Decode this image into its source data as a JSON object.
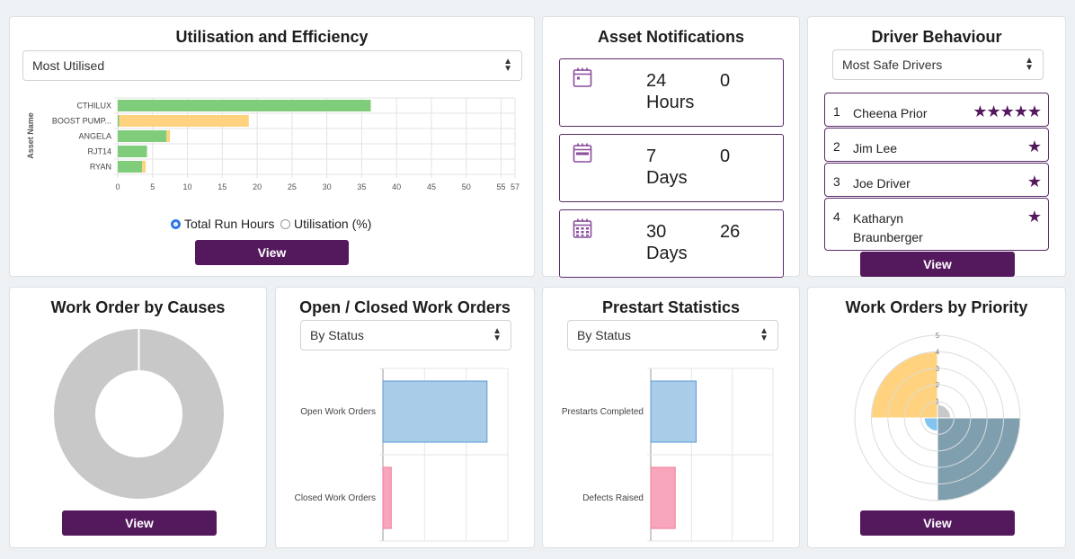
{
  "utilisation": {
    "title": "Utilisation and Efficiency",
    "select_value": "Most Utilised",
    "view_label": "View",
    "radio_run_hours": "Total Run Hours",
    "radio_utilisation": "Utilisation (%)"
  },
  "notifications": {
    "title": "Asset Notifications",
    "items": [
      {
        "num": "24",
        "unit": "Hours",
        "count": "0"
      },
      {
        "num": "7",
        "unit": "Days",
        "count": "0"
      },
      {
        "num": "30",
        "unit": "Days",
        "count": "26"
      }
    ]
  },
  "drivers": {
    "title": "Driver Behaviour",
    "select_value": "Most Safe Drivers",
    "view_label": "View",
    "items": [
      {
        "rank": "1",
        "name": "Cheena Prior",
        "stars": "★★★★★"
      },
      {
        "rank": "2",
        "name": "Jim Lee",
        "stars": "★"
      },
      {
        "rank": "3",
        "name": "Joe Driver",
        "stars": "★"
      },
      {
        "rank": "4",
        "name": "Katharyn Braunberger",
        "stars": "★"
      }
    ]
  },
  "causes": {
    "title": "Work Order by Causes",
    "view_label": "View"
  },
  "open_closed": {
    "title": "Open / Closed Work Orders",
    "select_value": "By Status"
  },
  "prestart": {
    "title": "Prestart Statistics",
    "select_value": "By Status"
  },
  "priority": {
    "title": "Work Orders by Priority",
    "view_label": "View"
  },
  "colors": {
    "brand": "#54185c",
    "green": "#7fcd7a",
    "orange": "#ffd27f",
    "blue": "#a9cce9",
    "pink": "#f7a6bc",
    "grey": "#c8c8c8",
    "slate": "#7f9faf"
  },
  "chart_data": [
    {
      "type": "bar",
      "orientation": "horizontal",
      "stacked": true,
      "categories": [
        "CTHILUX",
        "BOOST PUMP...",
        "ANGELA",
        "RJT14",
        "RYAN"
      ],
      "series": [
        {
          "values": [
            36.3,
            0.2,
            7.0,
            4.2,
            3.5
          ],
          "color": "#7fcd7a"
        },
        {
          "values": [
            0,
            18.6,
            0.5,
            0,
            0.5
          ],
          "color": "#ffd27f"
        }
      ],
      "ylabel": "Asset Name",
      "xlim": [
        0,
        57
      ],
      "xticks": [
        "0",
        "5",
        "10",
        "15",
        "20",
        "25",
        "30",
        "35",
        "40",
        "45",
        "50",
        "55",
        "57"
      ],
      "grid": true
    },
    {
      "type": "pie",
      "donut": true,
      "values": [
        1
      ],
      "colors": [
        "#c8c8c8"
      ]
    },
    {
      "type": "bar",
      "orientation": "horizontal",
      "categories": [
        "Open Work Orders",
        "Closed Work Orders"
      ],
      "values": [
        5,
        0.4
      ],
      "colors": [
        "#a9cce9",
        "#f7a6bc"
      ],
      "grid": true
    },
    {
      "type": "bar",
      "orientation": "horizontal",
      "categories": [
        "Prestarts Completed",
        "Defects Raised"
      ],
      "values": [
        2.6,
        1.4
      ],
      "colors": [
        "#a9cce9",
        "#f7a6bc"
      ],
      "grid": true
    },
    {
      "type": "polar_area",
      "rticks": [
        "1",
        "2",
        "3",
        "4",
        "5"
      ],
      "rmax": 5,
      "values": [
        0,
        5,
        0.8,
        4,
        0.8
      ],
      "colors": [
        "#ffd27f",
        "#7f9faf",
        "#82c4f0",
        "#ffd27f",
        "#c8c8c8"
      ]
    }
  ]
}
